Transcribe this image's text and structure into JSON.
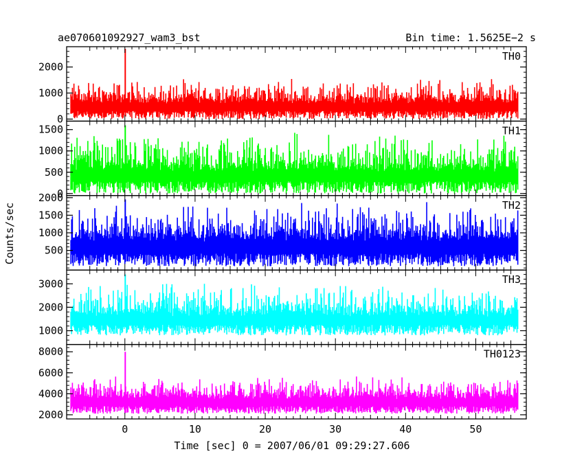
{
  "title": "ae070601092927_wam3_bst",
  "bin_time": "Bin time: 1.5625E−2 s",
  "colors": {
    "TH0": "#ff0000",
    "TH1": "#00ff00",
    "TH2": "#0000ff",
    "TH3": "#00ffff",
    "TH0123": "#ff00ff"
  },
  "chart_data": {
    "type": "line",
    "xlabel": "Time [sec] 0 = 2007/06/01 09:29:27.606",
    "ylabel": "Counts/sec",
    "xlim": [
      -8.3,
      57.2
    ],
    "x_ticks": [
      0,
      10,
      20,
      30,
      40,
      50
    ],
    "x_tick_labels": [
      "0",
      "10",
      "20",
      "30",
      "40",
      "50"
    ],
    "x_data_range": [
      -7.7,
      56.0
    ],
    "bin_width": 0.015625,
    "grid": false,
    "legend": "none",
    "panels": [
      {
        "name": "TH0",
        "ylim": [
          0,
          2700
        ],
        "y_ticks": [
          0,
          1000,
          2000
        ],
        "y_tick_labels": [
          "0",
          "1000",
          "2000"
        ],
        "baseline": 600,
        "noise_low": 0,
        "noise_high": 1250,
        "peak_time": 0.05,
        "peak_value": 2700
      },
      {
        "name": "TH1",
        "ylim": [
          0,
          1650
        ],
        "y_ticks": [
          0,
          500,
          1000,
          1500
        ],
        "y_tick_labels": [
          "0",
          "500",
          "1000",
          "1500"
        ],
        "baseline": 500,
        "noise_low": 0,
        "noise_high": 1150,
        "peak_time": 0.05,
        "peak_value": 1600
      },
      {
        "name": "TH2",
        "ylim": [
          0,
          2000
        ],
        "y_ticks": [
          500,
          1000,
          1500,
          2000
        ],
        "y_tick_labels": [
          "500",
          "1000",
          "1500",
          "2000"
        ],
        "baseline": 750,
        "noise_low": 50,
        "noise_high": 1500,
        "peak_time": 0.05,
        "peak_value": 1950
      },
      {
        "name": "TH3",
        "ylim": [
          500,
          3500
        ],
        "y_ticks": [
          1000,
          2000,
          3000
        ],
        "y_tick_labels": [
          "1000",
          "2000",
          "3000"
        ],
        "baseline": 1600,
        "noise_low": 800,
        "noise_high": 2600,
        "peak_time": 0.05,
        "peak_value": 3400
      },
      {
        "name": "TH0123",
        "ylim": [
          1800,
          8500
        ],
        "y_ticks": [
          2000,
          4000,
          6000,
          8000
        ],
        "y_tick_labels": [
          "2000",
          "4000",
          "6000",
          "8000"
        ],
        "baseline": 3500,
        "noise_low": 2100,
        "noise_high": 5000,
        "peak_time": 0.05,
        "peak_value": 8000
      }
    ]
  }
}
